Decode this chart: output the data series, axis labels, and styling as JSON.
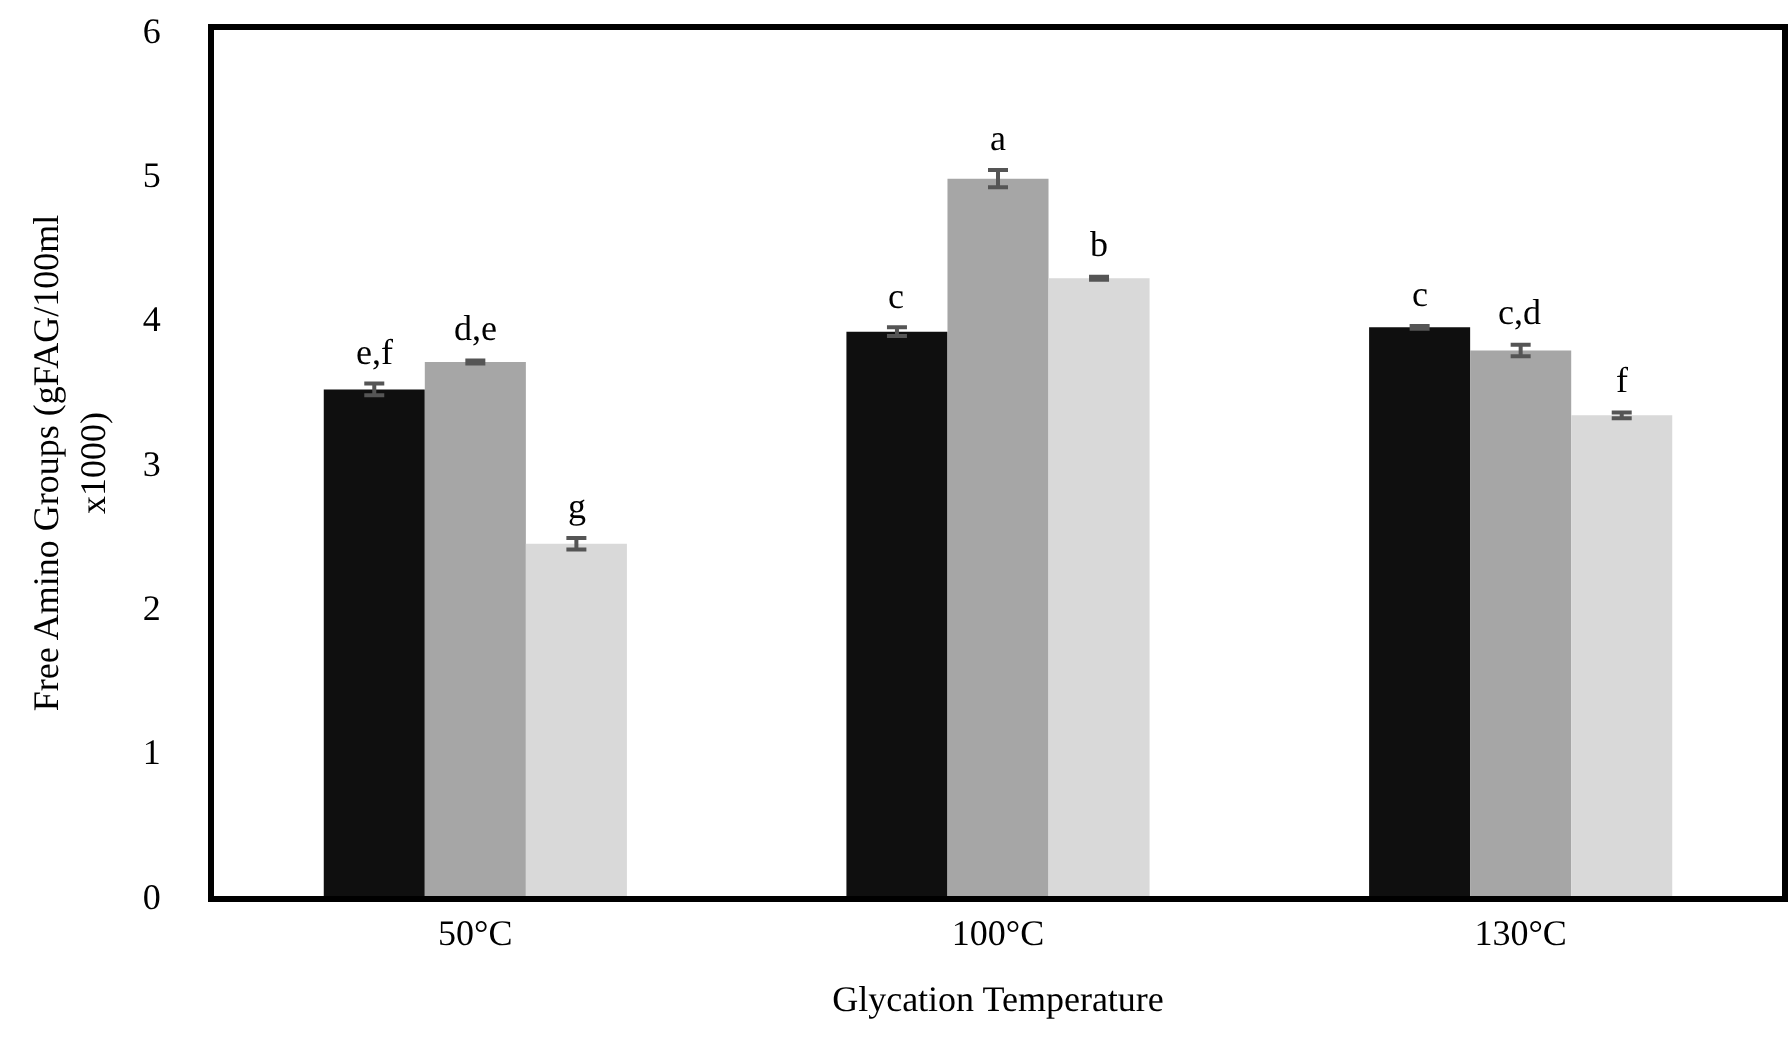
{
  "chart_data": {
    "type": "bar",
    "xlabel": "Glycation Temperature",
    "ylabel": "Free Amino Groups (gFAG/100ml x1000)",
    "categories": [
      "50°C",
      "100°C",
      "130°C"
    ],
    "series": [
      {
        "color": "#0f0f0f",
        "values": [
          3.51,
          3.91,
          3.94
        ],
        "errors": [
          0.04,
          0.03,
          0.01
        ],
        "value_labels": [
          "e,f",
          "c",
          "c"
        ]
      },
      {
        "color": "#a6a6a6",
        "values": [
          3.7,
          4.97,
          3.78
        ],
        "errors": [
          0.01,
          0.06,
          0.04
        ],
        "value_labels": [
          "d,e",
          "a",
          "c,d"
        ]
      },
      {
        "color": "#d9d9d9",
        "values": [
          2.44,
          4.28,
          3.33
        ],
        "errors": [
          0.04,
          0.01,
          0.02
        ],
        "value_labels": [
          "g",
          "b",
          "f"
        ]
      }
    ],
    "ylim": [
      0,
      6
    ],
    "yticks": [
      0,
      1,
      2,
      3,
      4,
      5,
      6
    ],
    "grid": false
  }
}
